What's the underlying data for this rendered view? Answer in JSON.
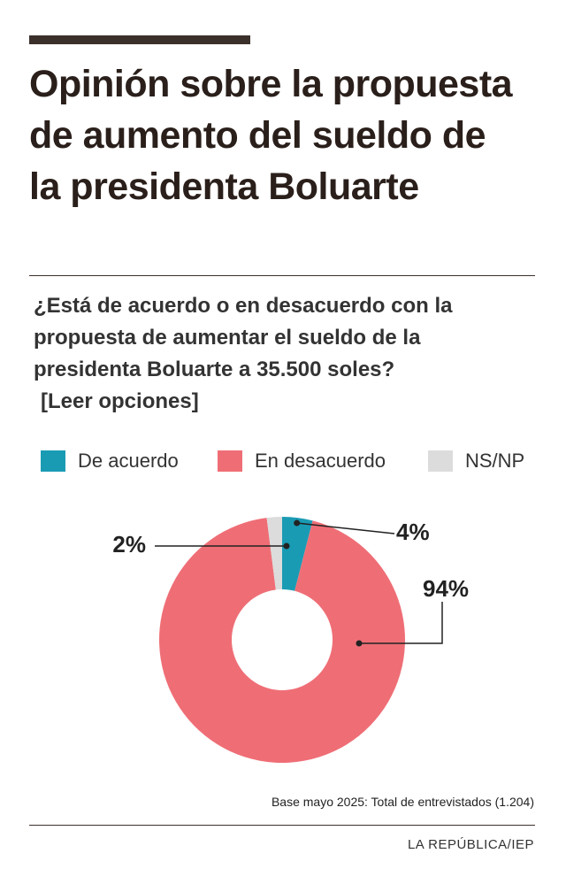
{
  "chart_data": {
    "type": "donut",
    "title": "Opinión sobre la propuesta de aumento del sueldo de la presidenta Boluarte",
    "subtitle": "¿Está de acuerdo o en desacuerdo con la propuesta de aumentar el sueldo de la presidenta Boluarte a 35.500 soles?",
    "instruction": "[Leer opciones]",
    "categories": [
      "De acuerdo",
      "En desacuerdo",
      "NS/NP"
    ],
    "series": [
      {
        "values": [
          4,
          94,
          2
        ],
        "value_labels": [
          "4%",
          "94%",
          "2%"
        ],
        "colors": [
          "#1a9bb4",
          "#ef6e76",
          "#dcdcdc"
        ]
      }
    ],
    "note": "Base mayo 2025: Total de entrevistados (1.204)",
    "source": "LA REPÚBLICA/IEP"
  }
}
